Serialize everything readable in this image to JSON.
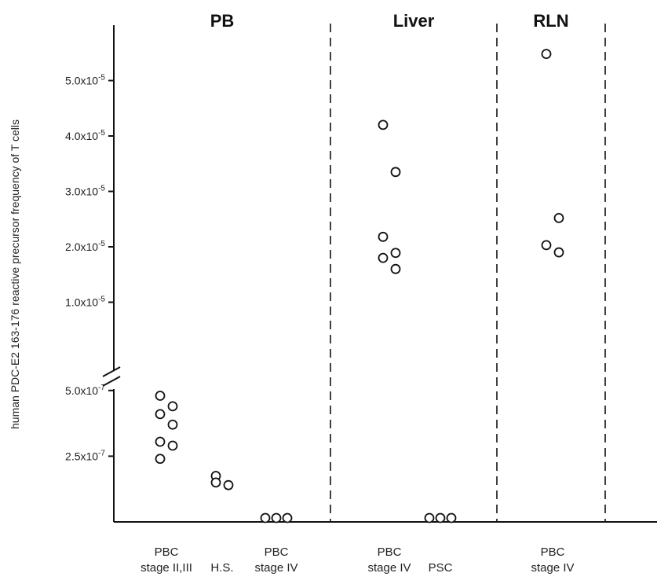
{
  "chart_data": {
    "type": "scatter",
    "ylabel": "human PDC-E2 163-176 reactive precursor frequency of T cells",
    "y_axis": {
      "broken": true,
      "lower_segment": {
        "ylim": [
          0,
          6.25e-07
        ],
        "ticks": [
          {
            "value": 2.5e-07,
            "mantissa": "2.5x10",
            "exp": "-7"
          },
          {
            "value": 5e-07,
            "mantissa": "5.0x10",
            "exp": "-7"
          }
        ]
      },
      "upper_segment": {
        "ylim": [
          0,
          6e-05
        ],
        "ticks": [
          {
            "value": 1e-05,
            "mantissa": "1.0x10",
            "exp": "-5"
          },
          {
            "value": 2e-05,
            "mantissa": "2.0x10",
            "exp": "-5"
          },
          {
            "value": 3e-05,
            "mantissa": "3.0x10",
            "exp": "-5"
          },
          {
            "value": 4e-05,
            "mantissa": "4.0x10",
            "exp": "-5"
          },
          {
            "value": 5e-05,
            "mantissa": "5.0x10",
            "exp": "-5"
          }
        ]
      }
    },
    "panels": [
      {
        "title": "PB",
        "groups": [
          {
            "label_lines": [
              "PBC",
              "stage II,III"
            ],
            "segment": "lower",
            "values": [
              4.8e-07,
              4.4e-07,
              4.1e-07,
              3.7e-07,
              3.05e-07,
              2.9e-07,
              2.4e-07
            ]
          },
          {
            "label_lines": [
              "",
              "H.S."
            ],
            "segment": "lower",
            "values": [
              1.75e-07,
              1.4e-07,
              1.5e-07
            ]
          },
          {
            "label_lines": [
              "PBC",
              "stage IV"
            ],
            "segment": "lower",
            "values": [
              1.5e-08,
              1.5e-08,
              1.5e-08
            ]
          }
        ]
      },
      {
        "title": "Liver",
        "groups": [
          {
            "label_lines": [
              "PBC",
              "stage IV"
            ],
            "segment": "upper",
            "values": [
              4.2e-05,
              3.35e-05,
              2.18e-05,
              1.89e-05,
              1.8e-05,
              1.6e-05
            ]
          },
          {
            "label_lines": [
              "",
              "PSC"
            ],
            "segment": "lower",
            "values": [
              1.5e-08,
              1.5e-08,
              1.5e-08
            ]
          }
        ]
      },
      {
        "title": "RLN",
        "groups": [
          {
            "label_lines": [
              "PBC",
              "stage IV"
            ],
            "segment": "upper",
            "values": [
              5.48e-05,
              2.52e-05,
              2.03e-05,
              1.9e-05
            ]
          }
        ]
      }
    ],
    "grid": false,
    "legend": "none"
  }
}
